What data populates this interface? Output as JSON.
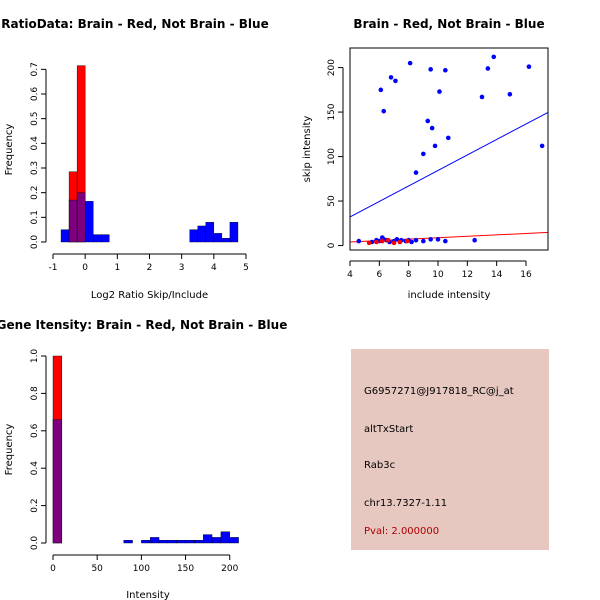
{
  "colors": {
    "red": "#ff0000",
    "blue": "#0000ff",
    "purple": "#7f007f",
    "axis": "#000000",
    "panel_bg": "#e6c8c0",
    "pval": "#b00000"
  },
  "chart_data": [
    {
      "type": "bar",
      "subtype": "overlaid-histogram",
      "title": "RatioData: Brain - Red, Not Brain - Blue",
      "xlabel": "Log2 Ratio Skip/Include",
      "ylabel": "Frequency",
      "xlim": [
        -1,
        5
      ],
      "ylim": [
        0,
        0.75
      ],
      "xticks": [
        -1,
        0,
        1,
        2,
        3,
        4,
        5
      ],
      "yticks": [
        0.0,
        0.1,
        0.2,
        0.3,
        0.4,
        0.5,
        0.6,
        0.7
      ],
      "bin_width": 0.25,
      "bin_starts": [
        -0.75,
        -0.5,
        -0.25,
        0.0,
        0.25,
        0.5,
        0.75,
        1.0,
        1.25,
        1.5,
        1.75,
        2.0,
        2.25,
        2.5,
        2.75,
        3.0,
        3.25,
        3.5,
        3.75,
        4.0,
        4.25,
        4.5,
        4.75
      ],
      "series": [
        {
          "name": "Brain",
          "color": "red",
          "values": [
            0,
            0.285,
            0.715,
            0,
            0,
            0,
            0,
            0,
            0,
            0,
            0,
            0,
            0,
            0,
            0,
            0,
            0,
            0,
            0,
            0,
            0,
            0,
            0
          ]
        },
        {
          "name": "Not Brain",
          "color": "blue",
          "values": [
            0.05,
            0.17,
            0.2,
            0.165,
            0.03,
            0.03,
            0,
            0,
            0,
            0,
            0,
            0,
            0,
            0,
            0,
            0,
            0.05,
            0.065,
            0.08,
            0.035,
            0.015,
            0.08,
            0
          ]
        }
      ]
    },
    {
      "type": "scatter",
      "title": "Brain - Red, Not Brain - Blue",
      "xlabel": "include intensity",
      "ylabel": "skip intensity",
      "xlim": [
        4,
        17.5
      ],
      "ylim": [
        -5,
        222
      ],
      "xticks": [
        4,
        6,
        8,
        10,
        12,
        14,
        16
      ],
      "yticks": [
        0,
        50,
        100,
        150,
        200
      ],
      "series": [
        {
          "name": "Not Brain",
          "color": "blue",
          "x": [
            4.6,
            5.5,
            5.8,
            6.0,
            6.2,
            6.3,
            6.5,
            6.7,
            7.0,
            7.2,
            7.5,
            7.8,
            8.0,
            8.2,
            8.5,
            9.0,
            9.5,
            10.0,
            10.5,
            12.5,
            6.1,
            6.3,
            6.8,
            7.1,
            8.1,
            8.5,
            9.0,
            9.3,
            9.5,
            9.6,
            9.8,
            10.1,
            10.5,
            10.7,
            13.0,
            13.4,
            13.8,
            14.9,
            16.2,
            17.1
          ],
          "y": [
            5,
            4,
            6,
            5,
            9,
            7,
            6,
            4,
            5,
            7,
            6,
            5,
            6,
            4,
            6,
            5,
            7,
            7,
            5,
            6,
            175,
            151,
            189,
            185,
            205,
            82,
            103,
            140,
            198,
            132,
            112,
            173,
            197,
            121,
            167,
            199,
            212,
            170,
            201,
            112
          ]
        },
        {
          "name": "Brain",
          "color": "red",
          "x": [
            5.3,
            5.8,
            6.2,
            6.6,
            7.0,
            7.4,
            7.9
          ],
          "y": [
            3,
            4,
            5,
            6,
            3,
            4,
            5
          ]
        }
      ],
      "fit_lines": [
        {
          "name": "Not Brain",
          "color": "blue",
          "intercept": -2.6,
          "slope": 8.7
        },
        {
          "name": "Brain",
          "color": "red",
          "intercept": 0.8,
          "slope": 0.8
        }
      ]
    },
    {
      "type": "bar",
      "subtype": "overlaid-histogram",
      "title": "Gene Itensity: Brain - Red, Not Brain - Blue",
      "xlabel": "Intensity",
      "ylabel": "Frequency",
      "xlim": [
        0,
        215
      ],
      "ylim": [
        0,
        1.0
      ],
      "xticks": [
        0,
        50,
        100,
        150,
        200
      ],
      "yticks": [
        0.0,
        0.2,
        0.4,
        0.6,
        0.8,
        1.0
      ],
      "bin_width": 10,
      "bin_starts": [
        0,
        10,
        20,
        30,
        40,
        50,
        60,
        70,
        80,
        90,
        100,
        110,
        120,
        130,
        140,
        150,
        160,
        170,
        180,
        190,
        200
      ],
      "series": [
        {
          "name": "Brain",
          "color": "red",
          "values": [
            1.0,
            0,
            0,
            0,
            0,
            0,
            0,
            0,
            0,
            0,
            0,
            0,
            0,
            0,
            0,
            0,
            0,
            0,
            0,
            0,
            0
          ]
        },
        {
          "name": "Not Brain",
          "color": "blue",
          "values": [
            0.66,
            0,
            0,
            0,
            0,
            0,
            0,
            0,
            0.015,
            0,
            0.015,
            0.03,
            0.015,
            0.015,
            0.015,
            0.015,
            0.015,
            0.045,
            0.03,
            0.06,
            0.03
          ]
        }
      ]
    }
  ],
  "info": {
    "probe_id": "G6957271@J917818_RC@j_at",
    "event_type": "altTxStart",
    "gene": "Rab3c",
    "location": "chr13.7327-1.11",
    "pval": "Pval: 2.000000"
  }
}
